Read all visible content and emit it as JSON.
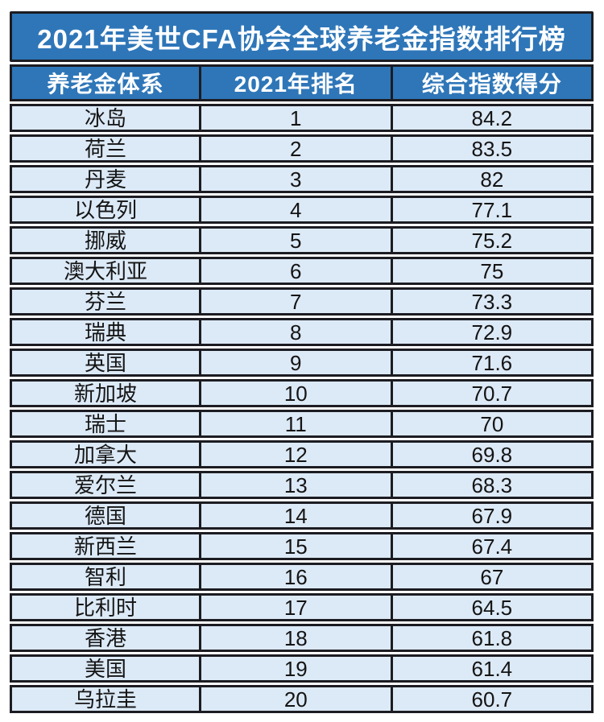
{
  "title": "2021年美世CFA协会全球养老金指数排行榜",
  "colors": {
    "header_bg": "#2e76b8",
    "header_text": "#ffffff",
    "row_bg": "#dce9f6",
    "row_text": "#141414",
    "border": "#1c1c22",
    "page_bg": "#ffffff"
  },
  "table": {
    "headers": [
      "养老金体系",
      "2021年排名",
      "综合指数得分"
    ],
    "rows": [
      {
        "country": "冰岛",
        "rank": "1",
        "score": "84.2"
      },
      {
        "country": "荷兰",
        "rank": "2",
        "score": "83.5"
      },
      {
        "country": "丹麦",
        "rank": "3",
        "score": "82"
      },
      {
        "country": "以色列",
        "rank": "4",
        "score": "77.1"
      },
      {
        "country": "挪威",
        "rank": "5",
        "score": "75.2"
      },
      {
        "country": "澳大利亚",
        "rank": "6",
        "score": "75"
      },
      {
        "country": "芬兰",
        "rank": "7",
        "score": "73.3"
      },
      {
        "country": "瑞典",
        "rank": "8",
        "score": "72.9"
      },
      {
        "country": "英国",
        "rank": "9",
        "score": "71.6"
      },
      {
        "country": "新加坡",
        "rank": "10",
        "score": "70.7"
      },
      {
        "country": "瑞士",
        "rank": "11",
        "score": "70"
      },
      {
        "country": "加拿大",
        "rank": "12",
        "score": "69.8"
      },
      {
        "country": "爱尔兰",
        "rank": "13",
        "score": "68.3"
      },
      {
        "country": "德国",
        "rank": "14",
        "score": "67.9"
      },
      {
        "country": "新西兰",
        "rank": "15",
        "score": "67.4"
      },
      {
        "country": "智利",
        "rank": "16",
        "score": "67"
      },
      {
        "country": "比利时",
        "rank": "17",
        "score": "64.5"
      },
      {
        "country": "香港",
        "rank": "18",
        "score": "61.8"
      },
      {
        "country": "美国",
        "rank": "19",
        "score": "61.4"
      },
      {
        "country": "乌拉圭",
        "rank": "20",
        "score": "60.7"
      }
    ]
  },
  "chart_data": {
    "type": "table",
    "title": "2021年美世CFA协会全球养老金指数排行榜",
    "columns": [
      "养老金体系",
      "2021年排名",
      "综合指数得分"
    ],
    "categories": [
      "冰岛",
      "荷兰",
      "丹麦",
      "以色列",
      "挪威",
      "澳大利亚",
      "芬兰",
      "瑞典",
      "英国",
      "新加坡",
      "瑞士",
      "加拿大",
      "爱尔兰",
      "德国",
      "新西兰",
      "智利",
      "比利时",
      "香港",
      "美国",
      "乌拉圭"
    ],
    "series": [
      {
        "name": "2021年排名",
        "values": [
          1,
          2,
          3,
          4,
          5,
          6,
          7,
          8,
          9,
          10,
          11,
          12,
          13,
          14,
          15,
          16,
          17,
          18,
          19,
          20
        ]
      },
      {
        "name": "综合指数得分",
        "values": [
          84.2,
          83.5,
          82,
          77.1,
          75.2,
          75,
          73.3,
          72.9,
          71.6,
          70.7,
          70,
          69.8,
          68.3,
          67.9,
          67.4,
          67,
          64.5,
          61.8,
          61.4,
          60.7
        ]
      }
    ]
  }
}
